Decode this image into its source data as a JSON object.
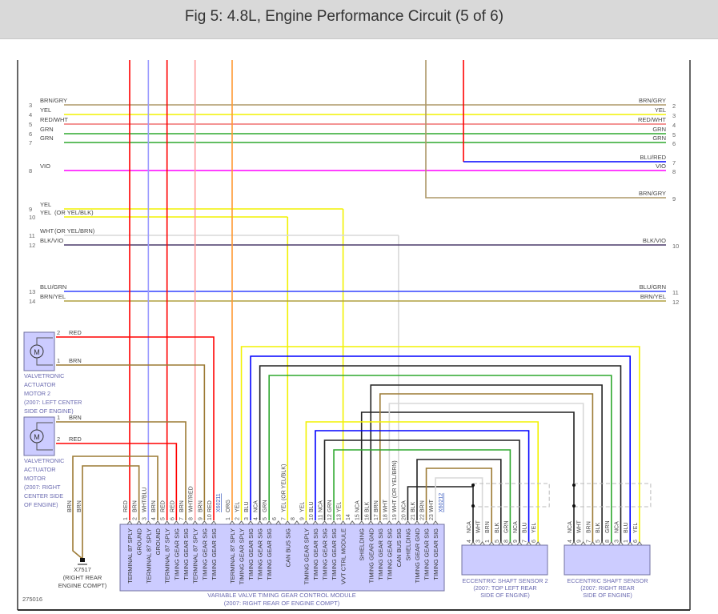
{
  "title": "Fig 5: 4.8L, Engine Performance Circuit (5 of 6)",
  "figure_id": "275016",
  "wire_colors": {
    "RED": "#ff0000",
    "BRN": "#9c7a34",
    "YEL": "#f2f200",
    "GRN": "#2ea82e",
    "BLU": "#0000ff",
    "NCA": "#222222",
    "BLK": "#222222",
    "WHT": "#d8d8d8",
    "ORG": "#ff9933",
    "WHT/BLU": "#9a9aff",
    "WHT/RED": "#ff9c9c",
    "BRN/GRY": "#ad9868",
    "RED/WHT": "#f07070",
    "VIO": "#ff00ff",
    "BLK/VIO": "#4a3a6a",
    "BLU/GRN": "#3344ff",
    "BRN/YEL": "#b0a040",
    "BLU/RED": "#0000ff"
  },
  "colors": {
    "component_fill": "#ccccff",
    "component_border": "#7070a0",
    "component_text": "#6a6ab0",
    "wire_text": "#444444"
  },
  "bus_wires": [
    {
      "left_num": "3",
      "label": "BRN/GRY",
      "color": "BRN/GRY",
      "right_label": "BRN/GRY",
      "right_num": "2"
    },
    {
      "left_num": "4",
      "label": "YEL",
      "color": "YEL",
      "right_label": "YEL",
      "right_num": "3"
    },
    {
      "left_num": "5",
      "label": "RED/WHT",
      "color": "RED/WHT",
      "right_label": "RED/WHT",
      "right_num": "4"
    },
    {
      "left_num": "6",
      "label": "GRN",
      "color": "GRN",
      "right_label": "GRN",
      "right_num": "5"
    },
    {
      "left_num": "7",
      "label": "GRN",
      "color": "GRN",
      "right_label": "GRN",
      "right_num": "6"
    },
    {
      "left_num": "8",
      "label": "VIO",
      "color": "VIO",
      "right_label": "VIO",
      "right_num": "8"
    },
    {
      "left_num": "9",
      "label": "YEL",
      "color": "YEL",
      "right_label": "",
      "right_num": ""
    },
    {
      "left_num": "10",
      "label": "YEL",
      "note": "(OR YEL/BLK)",
      "color": "YEL",
      "right_label": "",
      "right_num": ""
    },
    {
      "left_num": "11",
      "label": "WHT",
      "note": "(OR YEL/BRN)",
      "color": "WHT",
      "right_label": "",
      "right_num": ""
    },
    {
      "left_num": "12",
      "label": "BLK/VIO",
      "color": "BLK/VIO",
      "right_label": "BLK/VIO",
      "right_num": "10"
    },
    {
      "left_num": "13",
      "label": "BLU/GRN",
      "color": "BLU/GRN",
      "right_label": "BLU/GRN",
      "right_num": "11"
    },
    {
      "left_num": "14",
      "label": "BRN/YEL",
      "color": "BRN/YEL",
      "right_label": "BRN/YEL",
      "right_num": "12"
    }
  ],
  "right_only_wires": [
    {
      "label": "BLU/RED",
      "color": "BLU/RED",
      "num": "7"
    },
    {
      "label": "BRN/GRY",
      "color": "BRN/GRY",
      "num": "9"
    }
  ],
  "motors": [
    {
      "name": [
        "VALVETRONIC",
        "ACTUATOR",
        "MOTOR 2",
        "(2007: LEFT CENTER",
        "SIDE OF ENGINE)"
      ],
      "pins": [
        {
          "num": "2",
          "color": "RED"
        },
        {
          "num": "1",
          "color": "BRN"
        }
      ]
    },
    {
      "name": [
        "VALVETRONIC",
        "ACTUATOR",
        "MOTOR",
        "(2007: RIGHT",
        "CENTER SIDE",
        "OF ENGINE)"
      ],
      "pins": [
        {
          "num": "1",
          "color": "BRN"
        },
        {
          "num": "2",
          "color": "RED"
        }
      ]
    }
  ],
  "ground": {
    "id": "X7517",
    "location": [
      "(RIGHT REAR",
      "ENGINE COMPT)"
    ],
    "wire_labels": [
      "BRN",
      "BRN"
    ]
  },
  "module": {
    "name": "VARIABLE VALVE TIMING GEAR CONTROL MODULE",
    "location": "(2007: RIGHT REAR OF ENGINE COMPT)",
    "connectors": [
      {
        "id": "X60211",
        "pins": [
          {
            "num": "1",
            "color": "RED",
            "function": "TERMINAL 87 SPLY"
          },
          {
            "num": "2",
            "color": "BRN",
            "function": "GROUND"
          },
          {
            "num": "3",
            "color": "WHT/BLU",
            "function": "TERMINAL 87 SPLY"
          },
          {
            "num": "4",
            "color": "BRN",
            "function": "GROUND"
          },
          {
            "num": "5",
            "color": "RED",
            "function": "TERMINAL 87 SPLY"
          },
          {
            "num": "6",
            "color": "RED",
            "function": "TIMING GEAR SIG"
          },
          {
            "num": "7",
            "color": "BRN",
            "function": "TIMING GEAR SIG"
          },
          {
            "num": "8",
            "color": "WHT/RED",
            "function": "TERMINAL 87 SPLY"
          },
          {
            "num": "9",
            "color": "BRN",
            "function": "TIMING GEAR SIG"
          },
          {
            "num": "10",
            "color": "RED",
            "function": "TIMING GEAR SIG"
          }
        ]
      },
      {
        "id": "X60212",
        "pins": [
          {
            "num": "1",
            "color": "ORG",
            "function": "TERMINAL 87 SPLY"
          },
          {
            "num": "2",
            "color": "YEL",
            "function": "TIMING GEAR SPLY"
          },
          {
            "num": "3",
            "color": "BLU",
            "function": "TIMING GEAR SIG"
          },
          {
            "num": "4",
            "color": "NCA",
            "function": "TIMING GEAR SIG"
          },
          {
            "num": "5",
            "color": "GRN",
            "function": "TIMING GEAR SIG"
          },
          {
            "num": "6",
            "color": "",
            "function": ""
          },
          {
            "num": "7",
            "color": "YEL (OR YEL/BLK)",
            "function": "CAN BUS SIG"
          },
          {
            "num": "8",
            "color": "",
            "function": ""
          },
          {
            "num": "9",
            "color": "YEL",
            "function": "TIMING GEAR SPLY"
          },
          {
            "num": "10",
            "color": "BLU",
            "function": "TIMING GEAR SIG"
          },
          {
            "num": "11",
            "color": "NCA",
            "function": "TIMING GEAR SIG"
          },
          {
            "num": "12",
            "color": "GRN",
            "function": "TIMING GEAR SIG"
          },
          {
            "num": "13",
            "color": "YEL",
            "function": "VVT CTRL MODULE"
          },
          {
            "num": "14",
            "color": "",
            "function": ""
          },
          {
            "num": "15",
            "color": "NCA",
            "function": "SHIELDING"
          },
          {
            "num": "16",
            "color": "BLK",
            "function": "TIMING GEAR GND"
          },
          {
            "num": "17",
            "color": "BRN",
            "function": "TIMING GEAR SIG"
          },
          {
            "num": "18",
            "color": "WHT",
            "function": "TIMING GEAR SIG"
          },
          {
            "num": "19",
            "color": "WHT (OR YEL/BRN)",
            "function": "CAN BUS SIG"
          },
          {
            "num": "20",
            "color": "NCA",
            "function": "SHIELDING"
          },
          {
            "num": "21",
            "color": "BLK",
            "function": "TIMING GEAR GND"
          },
          {
            "num": "22",
            "color": "BRN",
            "function": "TIMING GEAR SIG"
          },
          {
            "num": "23",
            "color": "WHT",
            "function": "TIMING GEAR SIG"
          }
        ]
      }
    ]
  },
  "sensors": [
    {
      "name": "ECCENTRIC SHAFT SENSOR 2",
      "location": [
        "(2007: TOP LEFT REAR",
        "SIDE OF ENGINE)"
      ],
      "pins": [
        {
          "num": "4",
          "color": "NCA"
        },
        {
          "num": "3",
          "color": "WHT"
        },
        {
          "num": "1",
          "color": "BRN"
        },
        {
          "num": "5",
          "color": "BLK"
        },
        {
          "num": "8",
          "color": "GRN"
        },
        {
          "num": "9",
          "color": "NCA"
        },
        {
          "num": "7",
          "color": "BLU"
        },
        {
          "num": "6",
          "color": "YEL"
        }
      ]
    },
    {
      "name": "ECCENTRIC SHAFT SENSOR",
      "location": [
        "(2007: RIGHT REAR",
        "SIDE OF ENGINE)"
      ],
      "pins": [
        {
          "num": "4",
          "color": "NCA"
        },
        {
          "num": "9",
          "color": "WHT"
        },
        {
          "num": "7",
          "color": "BRN"
        },
        {
          "num": "5",
          "color": "BLK"
        },
        {
          "num": "8",
          "color": "GRN"
        },
        {
          "num": "3",
          "color": "NCA"
        },
        {
          "num": "1",
          "color": "BLU"
        },
        {
          "num": "6",
          "color": "YEL"
        }
      ]
    }
  ]
}
